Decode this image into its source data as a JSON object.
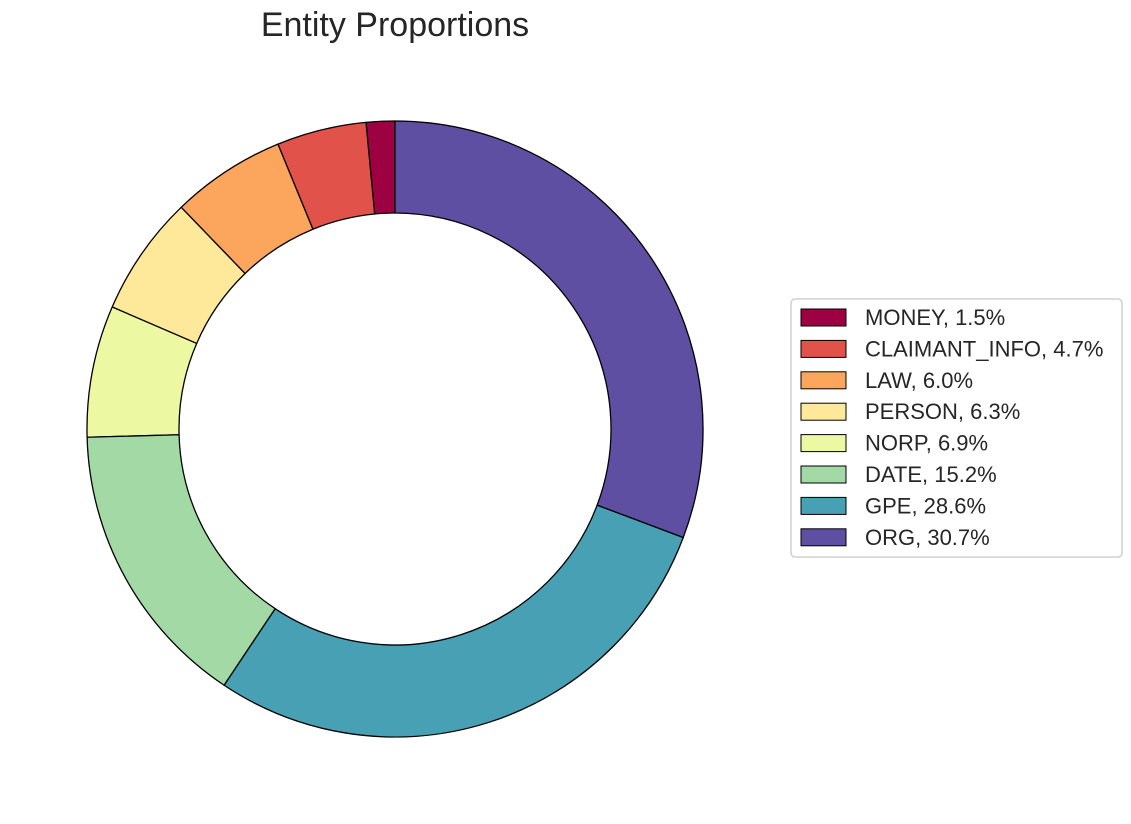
{
  "chart_data": {
    "type": "pie",
    "title": "Entity Proportions",
    "donut": true,
    "slices": [
      {
        "label": "MONEY",
        "value": 1.5,
        "legend": "MONEY, 1.5%",
        "color": "#9e0142"
      },
      {
        "label": "CLAIMANT_INFO",
        "value": 4.7,
        "legend": "CLAIMANT_INFO, 4.7%",
        "color": "#e1534a"
      },
      {
        "label": "LAW",
        "value": 6.0,
        "legend": "LAW, 6.0%",
        "color": "#fca55d"
      },
      {
        "label": "PERSON",
        "value": 6.3,
        "legend": "PERSON, 6.3%",
        "color": "#fee899"
      },
      {
        "label": "NORP",
        "value": 6.9,
        "legend": "NORP, 6.9%",
        "color": "#edf8a3"
      },
      {
        "label": "DATE",
        "value": 15.2,
        "legend": "DATE, 15.2%",
        "color": "#a2d9a4"
      },
      {
        "label": "GPE",
        "value": 28.6,
        "legend": "GPE, 28.6%",
        "color": "#47a0b3"
      },
      {
        "label": "ORG",
        "value": 30.7,
        "legend": "ORG, 30.7%",
        "color": "#5e4fa2"
      }
    ],
    "legend_position": "right",
    "slice_order": "counterclockwise from top"
  }
}
